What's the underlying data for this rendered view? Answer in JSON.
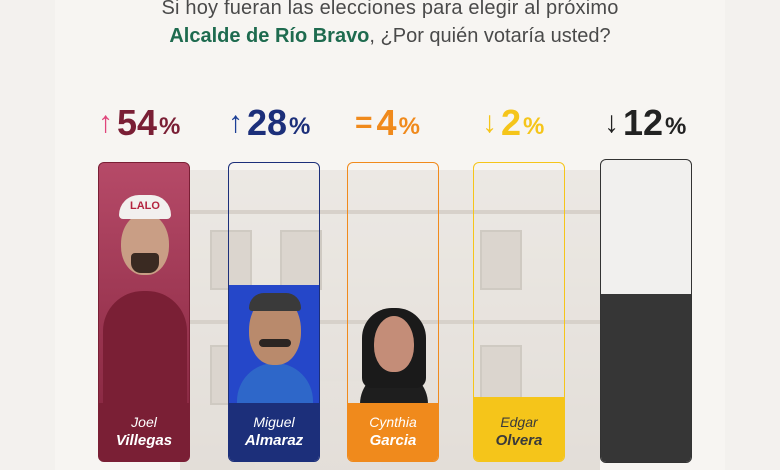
{
  "header": {
    "line1": "Si hoy fueran las elecciones para elegir al próximo",
    "line2_highlight": "Alcalde de Río Bravo",
    "line2_rest": ", ¿Por quién votaría usted?"
  },
  "candidates": [
    {
      "first": "Joel",
      "last": "Villegas",
      "arrow": "↑",
      "value": "54",
      "pct": "%",
      "share": 0.54,
      "color": "#7a1f35",
      "arrow_color": "#e0457b",
      "cap_text": "LALO"
    },
    {
      "first": "Miguel",
      "last": "Almaraz",
      "arrow": "↑",
      "value": "28",
      "pct": "%",
      "share": 0.28,
      "color": "#1c2f7a",
      "arrow_color": "#1c3f96"
    },
    {
      "first": "Cynthia",
      "last": "Garcia",
      "arrow": "=",
      "value": "4",
      "pct": "%",
      "share": 0.04,
      "color": "#f08a1c",
      "arrow_color": "#f08a1c"
    },
    {
      "first": "Edgar",
      "last": "Olvera",
      "arrow": "↓",
      "value": "2",
      "pct": "%",
      "share": 0.02,
      "color": "#f5c51a",
      "arrow_color": "#f5c51a"
    },
    {
      "first": "",
      "last": "",
      "arrow": "↓",
      "value": "12",
      "pct": "%",
      "share": 0.12,
      "color": "#333333",
      "arrow_color": "#222222"
    }
  ]
}
